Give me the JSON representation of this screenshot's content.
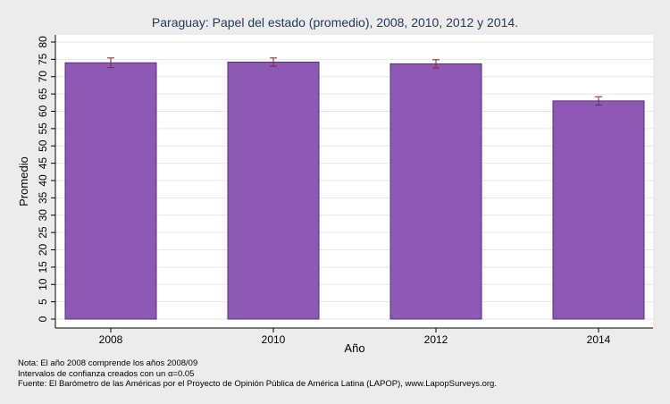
{
  "chart_data": {
    "type": "bar",
    "title": "Paraguay: Papel del estado (promedio), 2008, 2010, 2012 y 2014.",
    "xlabel": "Año",
    "ylabel": "Promedio",
    "categories": [
      "2008",
      "2010",
      "2012",
      "2014"
    ],
    "values": [
      74.0,
      74.2,
      73.7,
      63.0
    ],
    "error_bars": [
      {
        "low": 72.6,
        "high": 75.4
      },
      {
        "low": 73.0,
        "high": 75.4
      },
      {
        "low": 72.5,
        "high": 74.9
      },
      {
        "low": 61.8,
        "high": 64.2
      }
    ],
    "ylim": [
      0,
      80
    ],
    "yticks": [
      "0",
      "5",
      "10",
      "15",
      "20",
      "25",
      "30",
      "35",
      "40",
      "45",
      "50",
      "55",
      "60",
      "65",
      "70",
      "75",
      "80"
    ],
    "grid": true,
    "bar_color": "#8e59b4",
    "bar_edge": "#5a2d7a",
    "errorbar_color": "#7a2a2a"
  },
  "notes": {
    "line1": "Nota: El año 2008 comprende los años 2008/09",
    "line2": "Intervalos de confianza creados con un α=0.05",
    "line3": "Fuente: El Barómetro de las Américas por el Proyecto de Opinión Pública de América Latina (LAPOP), www.LapopSurveys.org."
  }
}
